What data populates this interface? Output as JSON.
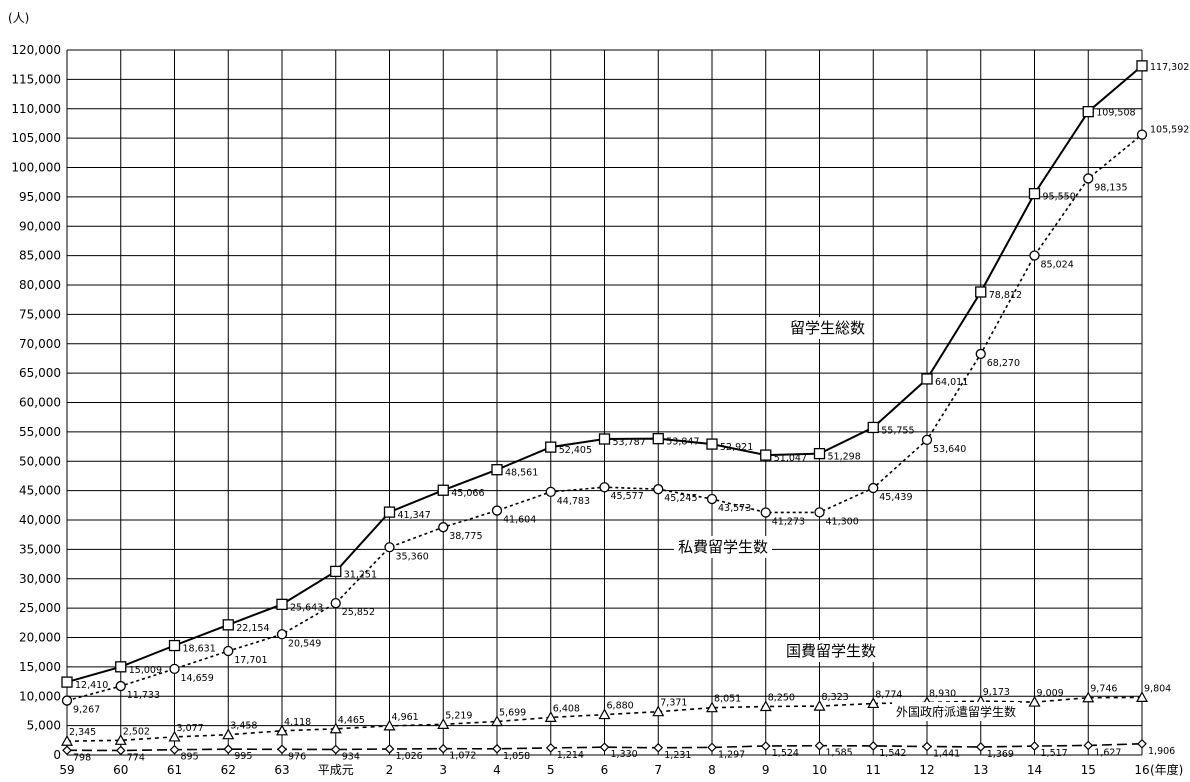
{
  "chart_data": {
    "type": "line",
    "y_unit": "(人)",
    "x_unit": "(年度)",
    "categories": [
      "59",
      "60",
      "61",
      "62",
      "63",
      "平成元",
      "2",
      "3",
      "4",
      "5",
      "6",
      "7",
      "8",
      "9",
      "10",
      "11",
      "12",
      "13",
      "14",
      "15",
      "16"
    ],
    "ylim": [
      0,
      120000
    ],
    "ytick_step": 5000,
    "grid": true,
    "series": [
      {
        "name": "留学生総数",
        "marker": "square",
        "style": "solid",
        "values": [
          12410,
          15009,
          18631,
          22154,
          25643,
          31251,
          41347,
          45066,
          48561,
          52405,
          53787,
          53847,
          52921,
          51047,
          51298,
          55755,
          64011,
          78812,
          95550,
          109508,
          117302
        ],
        "labels": [
          "12,410",
          "15,009",
          "18,631",
          "22,154",
          "25,643",
          "31,251",
          "41,347",
          "45,066",
          "48,561",
          "52,405",
          "53,787",
          "53,847",
          "52,921",
          "51,047",
          "51,298",
          "55,755",
          "64,011",
          "78,812",
          "95,550",
          "109,508",
          "117,302"
        ]
      },
      {
        "name": "私費留学生数",
        "marker": "circle",
        "style": "dotted",
        "values": [
          9267,
          11733,
          14659,
          17701,
          20549,
          25852,
          35360,
          38775,
          41604,
          44783,
          45577,
          45245,
          43573,
          41273,
          41300,
          45439,
          53640,
          68270,
          85024,
          98135,
          105592
        ],
        "labels": [
          "9,267",
          "11,733",
          "14,659",
          "17,701",
          "20,549",
          "25,852",
          "35,360",
          "38,775",
          "41,604",
          "44,783",
          "45,577",
          "45,245",
          "43,573",
          "41,273",
          "41,300",
          "45,439",
          "53,640",
          "68,270",
          "85,024",
          "98,135",
          "105,592"
        ]
      },
      {
        "name": "国費留学生数",
        "marker": "triangle",
        "style": "dashed",
        "values": [
          2345,
          2502,
          3077,
          3458,
          4118,
          4465,
          4961,
          5219,
          5699,
          6408,
          6880,
          7371,
          8051,
          8250,
          8323,
          8774,
          8930,
          9173,
          9009,
          9746,
          9804
        ],
        "labels": [
          "2,345",
          "2,502",
          "3,077",
          "3,458",
          "4,118",
          "4,465",
          "4,961",
          "5,219",
          "5,699",
          "6,408",
          "6,880",
          "7,371",
          "8,051",
          "8,250",
          "8,323",
          "8,774",
          "8,930",
          "9,173",
          "9,009",
          "9,746",
          "9,804"
        ]
      },
      {
        "name": "外国政府派遣留学生数",
        "marker": "diamond",
        "style": "longdash",
        "values": [
          798,
          774,
          895,
          995,
          976,
          934,
          1026,
          1072,
          1058,
          1214,
          1330,
          1231,
          1297,
          1524,
          1585,
          1542,
          1441,
          1369,
          1517,
          1627,
          1906
        ],
        "labels": [
          "798",
          "774",
          "895",
          "995",
          "976",
          "934",
          "1,026",
          "1,072",
          "1,058",
          "1,214",
          "1,330",
          "1,231",
          "1,297",
          "1,524",
          "1,585",
          "1,542",
          "1,441",
          "1,369",
          "1,517",
          "1,627",
          "1,906"
        ]
      }
    ]
  }
}
